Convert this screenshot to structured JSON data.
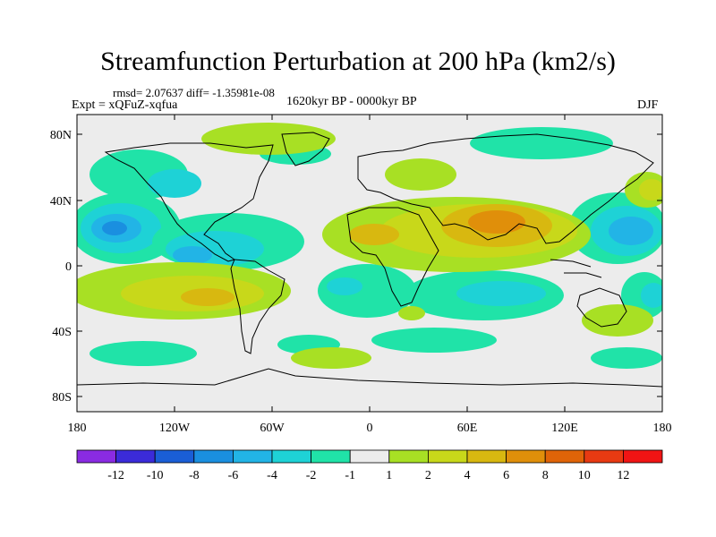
{
  "title": "Streamfunction Perturbation at 200 hPa (km2/s)",
  "stats": "rmsd= 2.07637 diff= -1.35981e-08",
  "experiment": "Expt = xQFuZ-xqfua",
  "period": "1620kyr BP - 0000kyr BP",
  "season": "DJF",
  "axes": {
    "y_ticks": [
      "80N",
      "40N",
      "0",
      "40S",
      "80S"
    ],
    "x_ticks": [
      "180",
      "120W",
      "60W",
      "0",
      "60E",
      "120E",
      "180"
    ]
  },
  "colorbar": {
    "labels": [
      "-12",
      "-10",
      "-8",
      "-6",
      "-4",
      "-2",
      "-1",
      "1",
      "2",
      "4",
      "6",
      "8",
      "10",
      "12"
    ],
    "colors": [
      "#8a2be2",
      "#3b2bd9",
      "#1a5ed6",
      "#1a8fe0",
      "#22b4e6",
      "#1ed2d6",
      "#20e3a8",
      "#ececec",
      "#a8e024",
      "#c8d81a",
      "#d8b810",
      "#e08f0a",
      "#e06408",
      "#e83a12",
      "#f01414"
    ]
  },
  "background_color": "#ececec"
}
